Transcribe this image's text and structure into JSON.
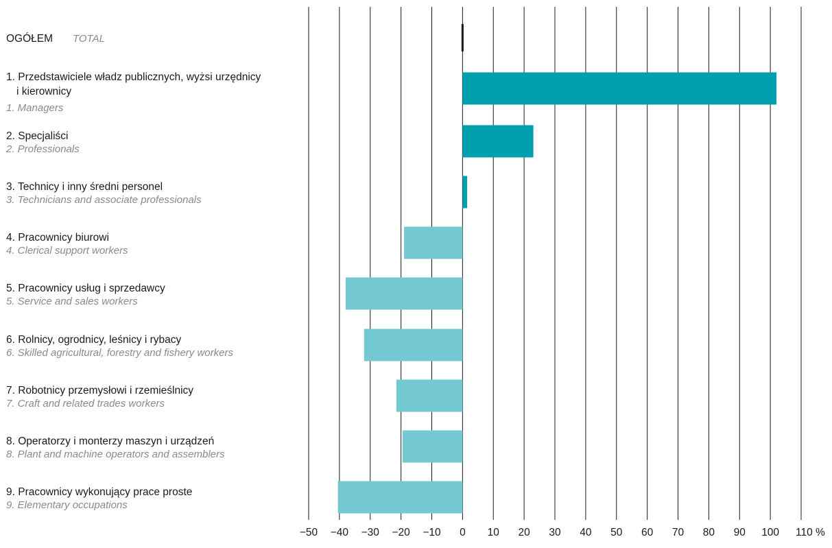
{
  "chart_data": {
    "type": "bar",
    "orientation": "horizontal",
    "xlim": [
      -50,
      110
    ],
    "x_ticks": [
      "−50",
      "−40",
      "−30",
      "−20",
      "−10",
      "0",
      "10",
      "20",
      "30",
      "40",
      "50",
      "60",
      "70",
      "80",
      "90",
      "100",
      "110 %"
    ],
    "grid": "vertical",
    "colors": {
      "total": "#1a1a1a",
      "positive": "#00a0ae",
      "negative": "#73c8d2"
    },
    "categories": [
      {
        "label_pl": "OGÓŁEM",
        "label_en": "TOTAL",
        "value": 0,
        "style": "total"
      },
      {
        "label_pl_lines": [
          "1. Przedstawiciele władz publicznych, wyżsi urzędnicy",
          "i kierownicy"
        ],
        "label_en": "1. Managers",
        "value": 102
      },
      {
        "label_pl": "2. Specjaliści",
        "label_en": "2. Professionals",
        "value": 23
      },
      {
        "label_pl": "3. Technicy i inny średni personel",
        "label_en": "3. Technicians and associate professionals",
        "value": 1.5
      },
      {
        "label_pl": "4. Pracownicy biurowi",
        "label_en": "4. Clerical support workers",
        "value": -19
      },
      {
        "label_pl": "5. Pracownicy usług i sprzedawcy",
        "label_en": "5. Service and sales workers",
        "value": -38
      },
      {
        "label_pl": "6. Rolnicy, ogrodnicy, leśnicy i rybacy",
        "label_en": "6. Skilled agricultural, forestry and fishery workers",
        "value": -32
      },
      {
        "label_pl": "7. Robotnicy przemysłowi i rzemieślnicy",
        "label_en": "7. Craft and related trades workers",
        "value": -21.5
      },
      {
        "label_pl": "8. Operatorzy i monterzy maszyn i urządzeń",
        "label_en": "8. Plant and machine operators and assemblers",
        "value": -19.5
      },
      {
        "label_pl": "9. Pracownicy wykonujący prace proste",
        "label_en": "9. Elementary occupations",
        "value": -40.5
      }
    ]
  }
}
